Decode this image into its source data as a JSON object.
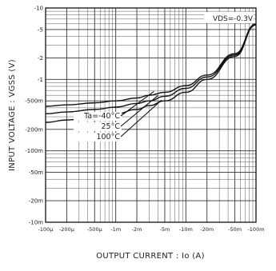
{
  "chart_data": {
    "type": "line",
    "title": "",
    "xlabel": "OUTPUT CURRENT : Io (A)",
    "ylabel": "INPUT VOLTAGE : VGSS (V)",
    "x_scale": "log",
    "y_scale": "log",
    "x_direction": "negative current, magnitude increasing to the right",
    "y_direction": "negative voltage, magnitude increasing upward",
    "xlim": [
      -0.0001,
      -0.1
    ],
    "ylim": [
      -0.01,
      -10
    ],
    "x_tick_labels": [
      "-100μ",
      "-200μ",
      "-500μ",
      "-1m",
      "-2m",
      "-5m",
      "-10m",
      "-20m",
      "-50m",
      "-100m"
    ],
    "x_tick_values": [
      -0.0001,
      -0.0002,
      -0.0005,
      -0.001,
      -0.002,
      -0.005,
      -0.01,
      -0.02,
      -0.05,
      -0.1
    ],
    "y_tick_labels": [
      "-10",
      "-5",
      "-2",
      "-1",
      "-500m",
      "-200m",
      "-100m",
      "-50m",
      "-20m",
      "-10m"
    ],
    "y_tick_values": [
      -10,
      -5,
      -2,
      -1,
      -0.5,
      -0.2,
      -0.1,
      -0.05,
      -0.02,
      -0.01
    ],
    "grid": true,
    "annotation": "VDS=-0.3V",
    "legend_position": "top-right",
    "series": [
      {
        "name": "Ta=-40°C",
        "x": [
          -0.0001,
          -0.0002,
          -0.0005,
          -0.001,
          -0.002,
          -0.003,
          -0.005,
          -0.01,
          -0.02,
          -0.05,
          -0.1
        ],
        "y": [
          -0.42,
          -0.44,
          -0.47,
          -0.5,
          -0.55,
          -0.6,
          -0.66,
          -0.82,
          -1.15,
          -2.3,
          -6.0
        ]
      },
      {
        "name": "25°C",
        "x": [
          -0.0001,
          -0.0002,
          -0.0005,
          -0.001,
          -0.002,
          -0.003,
          -0.005,
          -0.01,
          -0.02,
          -0.05,
          -0.1
        ],
        "y": [
          -0.33,
          -0.35,
          -0.38,
          -0.41,
          -0.46,
          -0.5,
          -0.58,
          -0.75,
          -1.08,
          -2.2,
          -5.9
        ]
      },
      {
        "name": "100°C",
        "x": [
          -0.0001,
          -0.0002,
          -0.0005,
          -0.001,
          -0.002,
          -0.003,
          -0.005,
          -0.01,
          -0.02,
          -0.05,
          -0.1
        ],
        "y": [
          -0.25,
          -0.27,
          -0.3,
          -0.33,
          -0.38,
          -0.43,
          -0.5,
          -0.66,
          -1.0,
          -2.1,
          -5.8
        ]
      }
    ]
  }
}
